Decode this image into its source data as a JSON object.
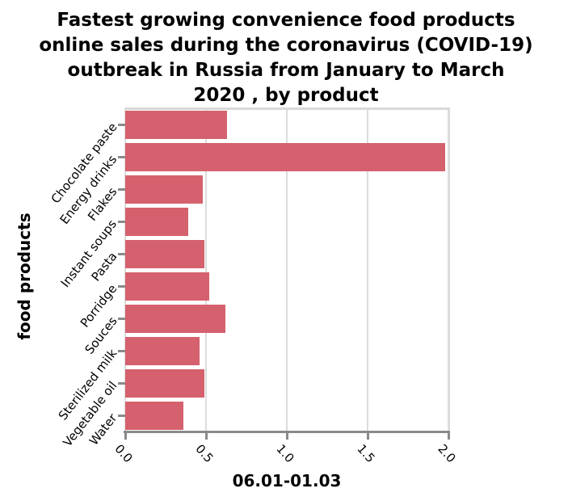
{
  "chart_data": {
    "type": "bar",
    "orientation": "horizontal",
    "title": "Fastest growing convenience food products online sales during the coronavirus (COVID-19) outbreak in Russia from January to March 2020 , by product",
    "title_lines": [
      "Fastest growing convenience food products",
      "online sales during the coronavirus (COVID-19)",
      "outbreak in Russia from January to March",
      "2020 , by product"
    ],
    "xlabel": "06.01-01.03",
    "ylabel": "food products",
    "categories": [
      "Chocolate paste",
      "Energy drinks",
      "Flakes",
      "Instant soups",
      "Pasta",
      "Porridge",
      "Souces",
      "Sterilized milk",
      "Vegetable oil",
      "Water"
    ],
    "values": [
      0.63,
      1.98,
      0.48,
      0.39,
      0.49,
      0.52,
      0.62,
      0.46,
      0.49,
      0.36
    ],
    "xlim": [
      0.0,
      2.0
    ],
    "xtick_labels": [
      "0.0",
      "0.5",
      "1.0",
      "1.5",
      "2.0"
    ],
    "xtick_values": [
      0.0,
      0.5,
      1.0,
      1.5,
      2.0
    ],
    "grid": true,
    "legend": false,
    "colors": {
      "bar": "#d5616e",
      "grid": "#dcdcdc",
      "spine": "#8a8a8a",
      "text": "#000000",
      "background": "#ffffff"
    }
  }
}
